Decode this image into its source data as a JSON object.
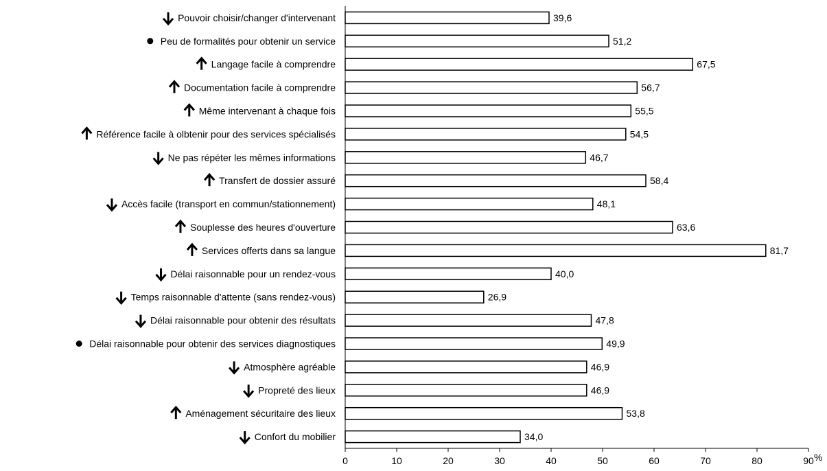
{
  "chart_data": {
    "type": "bar",
    "orientation": "horizontal",
    "title": "",
    "xlabel": "",
    "ylabel": "",
    "unit": "%",
    "xlim": [
      0,
      90
    ],
    "ticks": [
      0,
      10,
      20,
      30,
      40,
      50,
      60,
      70,
      80,
      90
    ],
    "grid": false,
    "bar_fill": "#ffffff",
    "bar_stroke": "#000000",
    "categories": [
      {
        "label": "Pouvoir choisir/changer d'intervenant",
        "value": 39.6,
        "value_label": "39,6",
        "marker": "arrow-down"
      },
      {
        "label": "Peu de formalités pour obtenir un service",
        "value": 51.2,
        "value_label": "51,2",
        "marker": "dot"
      },
      {
        "label": "Langage facile à comprendre",
        "value": 67.5,
        "value_label": "67,5",
        "marker": "arrow-up"
      },
      {
        "label": "Documentation facile à comprendre",
        "value": 56.7,
        "value_label": "56,7",
        "marker": "arrow-up"
      },
      {
        "label": "Même intervenant à chaque fois",
        "value": 55.5,
        "value_label": "55,5",
        "marker": "arrow-up"
      },
      {
        "label": "Référence facile à olbtenir pour des services spécialisés",
        "value": 54.5,
        "value_label": "54,5",
        "marker": "arrow-up"
      },
      {
        "label": "Ne pas répéter les mêmes informations",
        "value": 46.7,
        "value_label": "46,7",
        "marker": "arrow-down"
      },
      {
        "label": "Transfert de dossier assuré",
        "value": 58.4,
        "value_label": "58,4",
        "marker": "arrow-up"
      },
      {
        "label": "Accès facile (transport en commun/stationnement)",
        "value": 48.1,
        "value_label": "48,1",
        "marker": "arrow-down"
      },
      {
        "label": "Souplesse des heures d'ouverture",
        "value": 63.6,
        "value_label": "63,6",
        "marker": "arrow-up"
      },
      {
        "label": "Services offerts dans sa langue",
        "value": 81.7,
        "value_label": "81,7",
        "marker": "arrow-up"
      },
      {
        "label": "Délai raisonnable pour un rendez-vous",
        "value": 40.0,
        "value_label": "40,0",
        "marker": "arrow-down"
      },
      {
        "label": "Temps raisonnable d'attente (sans rendez-vous)",
        "value": 26.9,
        "value_label": "26,9",
        "marker": "arrow-down"
      },
      {
        "label": "Délai raisonnable pour obtenir des résultats",
        "value": 47.8,
        "value_label": "47,8",
        "marker": "arrow-down"
      },
      {
        "label": "Délai raisonnable pour obtenir des services diagnostiques",
        "value": 49.9,
        "value_label": "49,9",
        "marker": "dot"
      },
      {
        "label": "Atmosphère agréable",
        "value": 46.9,
        "value_label": "46,9",
        "marker": "arrow-down"
      },
      {
        "label": "Propreté des lieux",
        "value": 46.9,
        "value_label": "46,9",
        "marker": "arrow-down"
      },
      {
        "label": "Aménagement sécuritaire des lieux",
        "value": 53.8,
        "value_label": "53,8",
        "marker": "arrow-up"
      },
      {
        "label": "Confort du mobilier",
        "value": 34.0,
        "value_label": "34,0",
        "marker": "arrow-down"
      }
    ]
  }
}
